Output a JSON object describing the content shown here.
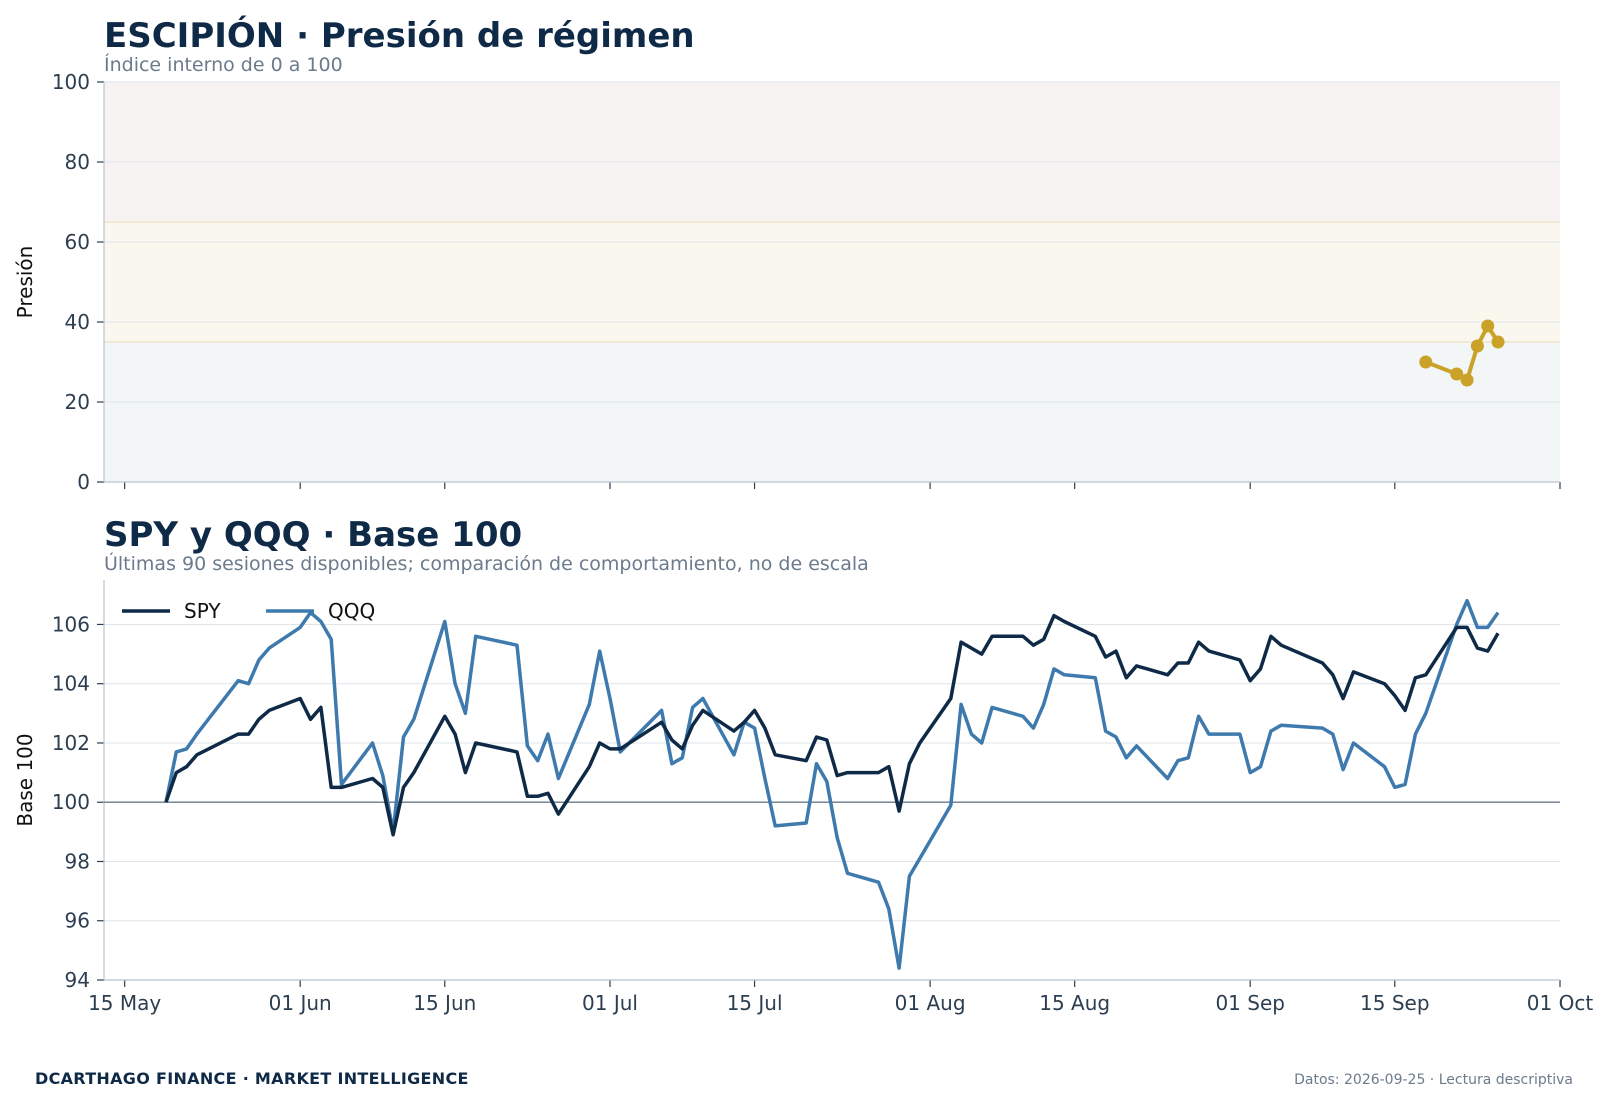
{
  "footer": {
    "brand": "DCARTHAGO FINANCE · MARKET INTELLIGENCE",
    "note": "Datos: 2026-09-25 · Lectura descriptiva"
  },
  "colors": {
    "pressure_line": "#c9a227",
    "spy": "#0f2a47",
    "qqq": "#3e7aad",
    "zone_low": "#f2f6f6",
    "zone_mid": "#faf7ee",
    "zone_high": "#f8f3f3"
  },
  "chart_data": [
    {
      "type": "line",
      "title": "ESCIPIÓN · Presión de régimen",
      "subtitle": "Índice interno de 0 a 100",
      "xlabel": "",
      "ylabel": "Presión",
      "ylim": [
        0,
        100
      ],
      "yticks": [
        0,
        20,
        40,
        60,
        80,
        100
      ],
      "xlim": [
        "2026-05-13",
        "2026-10-01"
      ],
      "grid": true,
      "zones": [
        {
          "from": 0,
          "to": 35
        },
        {
          "from": 35,
          "to": 65
        },
        {
          "from": 65,
          "to": 100
        }
      ],
      "series": [
        {
          "x": [
            "2026-09-18",
            "2026-09-21",
            "2026-09-22",
            "2026-09-23",
            "2026-09-24",
            "2026-09-25"
          ],
          "values": [
            30,
            27,
            25.5,
            34,
            39,
            35
          ]
        }
      ]
    },
    {
      "type": "line",
      "title": "SPY y QQQ · Base 100",
      "subtitle": "Últimas 90 sesiones disponibles; comparación de comportamiento, no de escala",
      "xlabel": "",
      "ylabel": "Base 100",
      "ylim": [
        94,
        107.5
      ],
      "yticks": [
        94,
        96,
        98,
        100,
        102,
        104,
        106
      ],
      "baseline": 100,
      "xlim": [
        "2026-05-13",
        "2026-10-01"
      ],
      "xticks": [
        "15 May",
        "01 Jun",
        "15 Jun",
        "01 Jul",
        "15 Jul",
        "01 Aug",
        "15 Aug",
        "01 Sep",
        "15 Sep",
        "01 Oct"
      ],
      "grid": true,
      "legend": "top-left",
      "x": [
        "2026-05-19",
        "2026-05-20",
        "2026-05-21",
        "2026-05-22",
        "2026-05-26",
        "2026-05-27",
        "2026-05-28",
        "2026-05-29",
        "2026-06-01",
        "2026-06-02",
        "2026-06-03",
        "2026-06-04",
        "2026-06-05",
        "2026-06-08",
        "2026-06-09",
        "2026-06-10",
        "2026-06-11",
        "2026-06-12",
        "2026-06-15",
        "2026-06-16",
        "2026-06-17",
        "2026-06-18",
        "2026-06-22",
        "2026-06-23",
        "2026-06-24",
        "2026-06-25",
        "2026-06-26",
        "2026-06-29",
        "2026-06-30",
        "2026-07-01",
        "2026-07-02",
        "2026-07-06",
        "2026-07-07",
        "2026-07-08",
        "2026-07-09",
        "2026-07-10",
        "2026-07-13",
        "2026-07-14",
        "2026-07-15",
        "2026-07-16",
        "2026-07-17",
        "2026-07-20",
        "2026-07-21",
        "2026-07-22",
        "2026-07-23",
        "2026-07-24",
        "2026-07-27",
        "2026-07-28",
        "2026-07-29",
        "2026-07-30",
        "2026-07-31",
        "2026-08-03",
        "2026-08-04",
        "2026-08-05",
        "2026-08-06",
        "2026-08-07",
        "2026-08-10",
        "2026-08-11",
        "2026-08-12",
        "2026-08-13",
        "2026-08-14",
        "2026-08-17",
        "2026-08-18",
        "2026-08-19",
        "2026-08-20",
        "2026-08-21",
        "2026-08-24",
        "2026-08-25",
        "2026-08-26",
        "2026-08-27",
        "2026-08-28",
        "2026-08-31",
        "2026-09-01",
        "2026-09-02",
        "2026-09-03",
        "2026-09-04",
        "2026-09-08",
        "2026-09-09",
        "2026-09-10",
        "2026-09-11",
        "2026-09-14",
        "2026-09-15",
        "2026-09-16",
        "2026-09-17",
        "2026-09-18",
        "2026-09-21",
        "2026-09-22",
        "2026-09-23",
        "2026-09-24",
        "2026-09-25"
      ],
      "series": [
        {
          "name": "SPY",
          "values": [
            100.0,
            101.0,
            101.2,
            101.6,
            102.3,
            102.3,
            102.8,
            103.1,
            103.5,
            102.8,
            103.2,
            100.5,
            100.5,
            100.8,
            100.5,
            98.9,
            100.5,
            101.0,
            102.9,
            102.3,
            101.0,
            102.0,
            101.7,
            100.2,
            100.2,
            100.3,
            99.6,
            101.2,
            102.0,
            101.8,
            101.8,
            102.7,
            102.1,
            101.8,
            102.6,
            103.1,
            102.4,
            102.7,
            103.1,
            102.5,
            101.6,
            101.4,
            102.2,
            102.1,
            100.9,
            101.0,
            101.0,
            101.2,
            99.7,
            101.3,
            102.0,
            103.5,
            105.4,
            105.2,
            105.0,
            105.6,
            105.6,
            105.3,
            105.5,
            106.3,
            106.1,
            105.6,
            104.9,
            105.1,
            104.2,
            104.6,
            104.3,
            104.7,
            104.7,
            105.4,
            105.1,
            104.8,
            104.1,
            104.5,
            105.6,
            105.3,
            104.7,
            104.3,
            103.5,
            104.4,
            104.0,
            103.6,
            103.1,
            104.2,
            104.3,
            105.9,
            105.9,
            105.2,
            105.1,
            105.7
          ]
        },
        {
          "name": "QQQ",
          "values": [
            100.0,
            101.7,
            101.8,
            102.3,
            104.1,
            104.0,
            104.8,
            105.2,
            105.9,
            106.4,
            106.1,
            105.5,
            100.6,
            102.0,
            100.9,
            99.0,
            102.2,
            102.8,
            106.1,
            104.0,
            103.0,
            105.6,
            105.3,
            101.9,
            101.4,
            102.3,
            100.8,
            103.3,
            105.1,
            103.5,
            101.7,
            103.1,
            101.3,
            101.5,
            103.2,
            103.5,
            101.6,
            102.7,
            102.5,
            100.8,
            99.2,
            99.3,
            101.3,
            100.7,
            98.8,
            97.6,
            97.3,
            96.4,
            94.4,
            97.5,
            98.1,
            99.9,
            103.3,
            102.3,
            102.0,
            103.2,
            102.9,
            102.5,
            103.3,
            104.5,
            104.3,
            104.2,
            102.4,
            102.2,
            101.5,
            101.9,
            100.8,
            101.4,
            101.5,
            102.9,
            102.3,
            102.3,
            101.0,
            101.2,
            102.4,
            102.6,
            102.5,
            102.3,
            101.1,
            102.0,
            101.2,
            100.5,
            100.6,
            102.3,
            103.0,
            106.0,
            106.8,
            105.9,
            105.9,
            106.4
          ]
        }
      ]
    }
  ]
}
